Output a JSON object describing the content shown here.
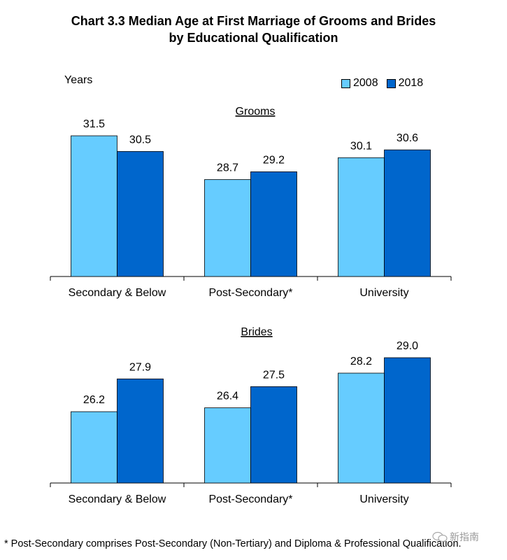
{
  "title_line1": "Chart 3.3  Median Age at First Marriage of Grooms and Brides",
  "title_line2": "by Educational Qualification",
  "y_unit": "Years",
  "legend": [
    {
      "label": "2008",
      "color": "#66ccff"
    },
    {
      "label": "2018",
      "color": "#0066cc"
    }
  ],
  "footnote": "*  Post-Secondary comprises Post-Secondary (Non-Tertiary) and Diploma & Professional Qualification.",
  "watermark": "新指南",
  "chart_data": [
    {
      "type": "bar",
      "title": "Grooms",
      "categories": [
        "Secondary & Below",
        "Post-Secondary*",
        "University"
      ],
      "series": [
        {
          "name": "2008",
          "values": [
            31.5,
            28.7,
            30.1
          ]
        },
        {
          "name": "2018",
          "values": [
            30.5,
            29.2,
            30.6
          ]
        }
      ],
      "ylabel": "Years",
      "legend": "top-right",
      "grid": false
    },
    {
      "type": "bar",
      "title": "Brides",
      "categories": [
        "Secondary & Below",
        "Post-Secondary*",
        "University"
      ],
      "series": [
        {
          "name": "2008",
          "values": [
            26.2,
            26.4,
            28.2
          ]
        },
        {
          "name": "2018",
          "values": [
            27.9,
            27.5,
            29.0
          ]
        }
      ],
      "ylabel": "Years",
      "legend": "top-right",
      "grid": false
    }
  ]
}
